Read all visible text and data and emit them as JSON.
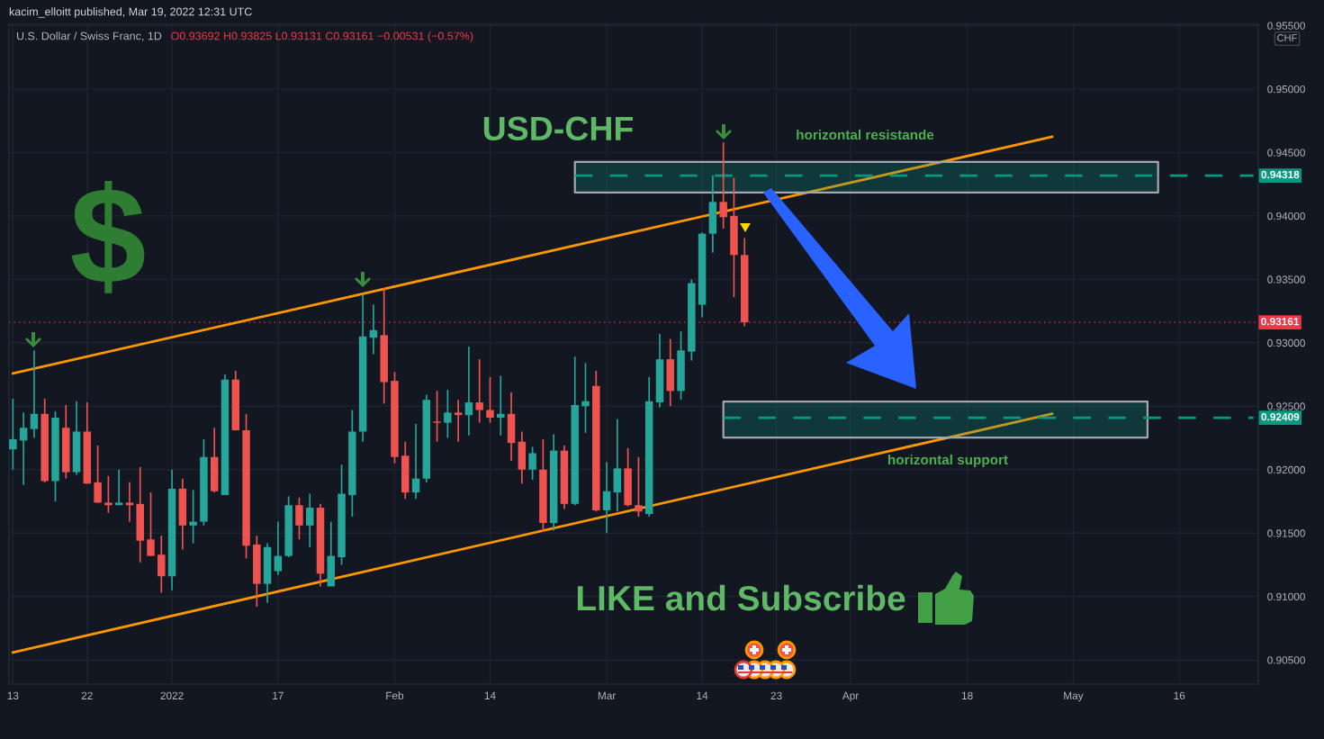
{
  "chart_data": {
    "type": "candlestick",
    "title": "U.S. Dollar / Swiss Franc, 1D",
    "subtitle": "O0.93692 H0.93825 L0.93131 C0.93161 −0.00531 (−0.57%)",
    "ylabel": "CHF",
    "categories": [
      "13",
      null,
      null,
      null,
      null,
      null,
      null,
      "22",
      null,
      null,
      null,
      null,
      null,
      null,
      null,
      "2022",
      null,
      null,
      null,
      null,
      null,
      null,
      null,
      null,
      null,
      "17",
      null,
      null,
      null,
      null,
      null,
      null,
      null,
      null,
      null,
      null,
      "Feb",
      null,
      null,
      null,
      null,
      null,
      null,
      null,
      null,
      "14",
      null,
      null,
      null,
      null,
      null,
      null,
      null,
      null,
      null,
      null,
      "Mar",
      null,
      null,
      null,
      null,
      null,
      null,
      null,
      null,
      "14",
      null,
      null,
      null,
      null,
      null,
      null,
      "23",
      null,
      null,
      null,
      null,
      null,
      null,
      "Apr",
      null,
      null,
      null,
      null,
      null,
      null,
      null,
      null,
      null,
      null,
      "18",
      null,
      null,
      null,
      null,
      null,
      null,
      null,
      null,
      null,
      "May",
      null,
      null,
      null,
      null,
      null,
      null,
      null,
      null,
      null,
      "16",
      null,
      null,
      null,
      null,
      null,
      null,
      null
    ],
    "ohlc": [
      [
        0.9216,
        0.9256,
        0.92,
        0.9224
      ],
      [
        0.9223,
        0.9245,
        0.9188,
        0.9233
      ],
      [
        0.9232,
        0.9294,
        0.9225,
        0.9244
      ],
      [
        0.9244,
        0.9256,
        0.919,
        0.9191
      ],
      [
        0.9191,
        0.9246,
        0.9175,
        0.9241
      ],
      [
        0.9233,
        0.9251,
        0.9193,
        0.9198
      ],
      [
        0.9198,
        0.9254,
        0.9196,
        0.923
      ],
      [
        0.923,
        0.9253,
        0.9189,
        0.9189
      ],
      [
        0.919,
        0.9219,
        0.9174,
        0.9174
      ],
      [
        0.9174,
        0.9195,
        0.9166,
        0.9172
      ],
      [
        0.9172,
        0.92,
        0.9172,
        0.9174
      ],
      [
        0.9174,
        0.919,
        0.9159,
        0.9172
      ],
      [
        0.9173,
        0.9202,
        0.9127,
        0.9144
      ],
      [
        0.9145,
        0.9182,
        0.9132,
        0.9132
      ],
      [
        0.9133,
        0.9148,
        0.9103,
        0.9116
      ],
      [
        0.9116,
        0.92,
        0.9105,
        0.9185
      ],
      [
        0.9185,
        0.9193,
        0.9137,
        0.9156
      ],
      [
        0.9156,
        0.9184,
        0.9142,
        0.9159
      ],
      [
        0.9159,
        0.9224,
        0.9156,
        0.921
      ],
      [
        0.921,
        0.9233,
        0.9182,
        0.9183
      ],
      [
        0.918,
        0.9275,
        0.918,
        0.9271
      ],
      [
        0.9271,
        0.9278,
        0.9231,
        0.9231
      ],
      [
        0.9231,
        0.9244,
        0.913,
        0.914
      ],
      [
        0.9141,
        0.9148,
        0.9092,
        0.911
      ],
      [
        0.911,
        0.9142,
        0.9095,
        0.9139
      ],
      [
        0.912,
        0.9159,
        0.9117,
        0.9132
      ],
      [
        0.9132,
        0.9179,
        0.9131,
        0.9172
      ],
      [
        0.9172,
        0.9178,
        0.9145,
        0.9156
      ],
      [
        0.9156,
        0.9181,
        0.9139,
        0.917
      ],
      [
        0.917,
        0.9173,
        0.9108,
        0.9118
      ],
      [
        0.9108,
        0.9159,
        0.9108,
        0.9132
      ],
      [
        0.9131,
        0.9204,
        0.9125,
        0.9181
      ],
      [
        0.918,
        0.9247,
        0.9163,
        0.923
      ],
      [
        0.923,
        0.9338,
        0.9222,
        0.9305
      ],
      [
        0.9304,
        0.933,
        0.9291,
        0.931
      ],
      [
        0.9306,
        0.9343,
        0.9252,
        0.9269
      ],
      [
        0.927,
        0.9277,
        0.9205,
        0.921
      ],
      [
        0.9211,
        0.9222,
        0.9177,
        0.9182
      ],
      [
        0.9182,
        0.9236,
        0.9177,
        0.9193
      ],
      [
        0.9193,
        0.9259,
        0.919,
        0.9255
      ],
      [
        0.9238,
        0.9262,
        0.9222,
        0.9237
      ],
      [
        0.9237,
        0.9263,
        0.9225,
        0.9245
      ],
      [
        0.9245,
        0.9255,
        0.9222,
        0.9243
      ],
      [
        0.9243,
        0.9297,
        0.9227,
        0.9253
      ],
      [
        0.9253,
        0.9287,
        0.9237,
        0.9247
      ],
      [
        0.9247,
        0.9273,
        0.9237,
        0.9241
      ],
      [
        0.9241,
        0.9274,
        0.9227,
        0.9244
      ],
      [
        0.9244,
        0.9261,
        0.9207,
        0.9221
      ],
      [
        0.9222,
        0.923,
        0.9189,
        0.92
      ],
      [
        0.92,
        0.9218,
        0.9192,
        0.9213
      ],
      [
        0.92,
        0.9224,
        0.9151,
        0.9158
      ],
      [
        0.9158,
        0.9228,
        0.9152,
        0.9215
      ],
      [
        0.9215,
        0.9219,
        0.9169,
        0.9173
      ],
      [
        0.9173,
        0.9289,
        0.9172,
        0.9251
      ],
      [
        0.925,
        0.9284,
        0.9229,
        0.9254
      ],
      [
        0.9266,
        0.9278,
        0.9167,
        0.9168
      ],
      [
        0.9168,
        0.9206,
        0.915,
        0.9183
      ],
      [
        0.9182,
        0.924,
        0.9167,
        0.9201
      ],
      [
        0.9201,
        0.9217,
        0.9171,
        0.9172
      ],
      [
        0.9172,
        0.921,
        0.9163,
        0.9167
      ],
      [
        0.9165,
        0.9273,
        0.9163,
        0.9254
      ],
      [
        0.9253,
        0.9307,
        0.9249,
        0.9287
      ],
      [
        0.9287,
        0.9303,
        0.925,
        0.9262
      ],
      [
        0.9262,
        0.9309,
        0.9255,
        0.9294
      ],
      [
        0.9293,
        0.935,
        0.9286,
        0.9347
      ],
      [
        0.933,
        0.9387,
        0.932,
        0.9386
      ],
      [
        0.9386,
        0.9432,
        0.9371,
        0.9411
      ],
      [
        0.9411,
        0.9458,
        0.939,
        0.9399
      ],
      [
        0.94,
        0.943,
        0.9336,
        0.93692
      ],
      [
        0.93692,
        0.93825,
        0.93131,
        0.93161
      ],
      null,
      null,
      null,
      null,
      null,
      null,
      null,
      null,
      null,
      null,
      null,
      null,
      null,
      null,
      null,
      null,
      null,
      null,
      null,
      null,
      null,
      null,
      null,
      null,
      null,
      null,
      null,
      null,
      null,
      null,
      null,
      null,
      null,
      null,
      null,
      null,
      null,
      null,
      null,
      null,
      null,
      null,
      null,
      null,
      null,
      null,
      null,
      null
    ],
    "colors": [
      "#26a69a",
      "#26a69a",
      "#26a69a",
      "#ef5350",
      "#26a69a",
      "#ef5350",
      "#26a69a",
      "#ef5350",
      "#ef5350",
      "#ef5350",
      "#26a69a",
      "#ef5350",
      "#ef5350",
      "#ef5350",
      "#ef5350",
      "#26a69a",
      "#ef5350",
      "#26a69a",
      "#26a69a",
      "#ef5350",
      "#26a69a",
      "#ef5350",
      "#ef5350",
      "#ef5350",
      "#26a69a",
      "#26a69a",
      "#26a69a",
      "#ef5350",
      "#26a69a",
      "#ef5350",
      "#26a69a",
      "#26a69a",
      "#26a69a",
      "#26a69a",
      "#26a69a",
      "#ef5350",
      "#ef5350",
      "#ef5350",
      "#26a69a",
      "#26a69a",
      "#ef5350",
      "#26a69a",
      "#ef5350",
      "#26a69a",
      "#ef5350",
      "#ef5350",
      "#26a69a",
      "#ef5350",
      "#ef5350",
      "#26a69a",
      "#ef5350",
      "#26a69a",
      "#ef5350",
      "#26a69a",
      "#26a69a",
      "#ef5350",
      "#26a69a",
      "#26a69a",
      "#ef5350",
      "#ef5350",
      "#26a69a",
      "#26a69a",
      "#ef5350",
      "#26a69a",
      "#26a69a",
      "#26a69a",
      "#26a69a",
      "#ef5350",
      "#ef5350",
      "#ef5350",
      null,
      null,
      null,
      null,
      null,
      null,
      null,
      null,
      null,
      null,
      null,
      null,
      null,
      null,
      null,
      null,
      null,
      null,
      null,
      null,
      null,
      null,
      null,
      null,
      null,
      null,
      null,
      null,
      null,
      null,
      null,
      null,
      null,
      null,
      null,
      null,
      null,
      null,
      null,
      null,
      null,
      null,
      null,
      null,
      null,
      null,
      null,
      null
    ],
    "series": [
      {
        "type": "line",
        "color": "#ff9800",
        "values": [
          0.92758,
          null,
          null,
          null,
          null,
          null,
          null,
          null,
          null,
          null,
          null,
          null,
          null,
          null,
          null,
          null,
          null,
          null,
          null,
          null,
          null,
          null,
          null,
          null,
          null,
          null,
          null,
          null,
          null,
          null,
          null,
          null,
          null,
          null,
          null,
          null,
          null,
          null,
          null,
          null,
          null,
          null,
          null,
          null,
          null,
          null,
          null,
          null,
          null,
          null,
          null,
          null,
          null,
          null,
          null,
          null,
          null,
          null,
          null,
          null,
          null,
          null,
          null,
          null,
          null,
          null,
          null,
          null,
          null,
          null,
          null,
          null,
          null,
          null,
          null,
          null,
          null,
          null,
          null,
          null,
          null,
          null,
          null,
          null,
          null,
          null,
          null,
          null,
          null,
          null,
          null,
          null,
          null,
          null,
          null,
          null,
          null,
          null,
          0.94624,
          null,
          null,
          null,
          null,
          null,
          null,
          null,
          null,
          null,
          null,
          null,
          null,
          null,
          null,
          null,
          null,
          null,
          null,
          null
        ]
      },
      {
        "type": "line",
        "color": "#ff9800",
        "values": [
          0.9056,
          null,
          null,
          null,
          null,
          null,
          null,
          null,
          null,
          null,
          null,
          null,
          null,
          null,
          null,
          null,
          null,
          null,
          null,
          null,
          null,
          null,
          null,
          null,
          null,
          null,
          null,
          null,
          null,
          null,
          null,
          null,
          null,
          null,
          null,
          null,
          null,
          null,
          null,
          null,
          null,
          null,
          null,
          null,
          null,
          null,
          null,
          null,
          null,
          null,
          null,
          null,
          null,
          null,
          null,
          null,
          null,
          null,
          null,
          null,
          null,
          null,
          null,
          null,
          null,
          null,
          null,
          null,
          null,
          null,
          null,
          null,
          null,
          null,
          null,
          null,
          null,
          null,
          null,
          null,
          null,
          null,
          null,
          null,
          null,
          null,
          null,
          null,
          null,
          null,
          null,
          null,
          null,
          null,
          null,
          null,
          null,
          null,
          0.92441,
          null,
          null,
          null,
          null,
          null,
          null,
          null,
          null,
          null,
          null,
          null,
          null,
          null,
          null,
          null,
          null,
          null,
          null,
          null
        ]
      },
      {
        "type": "line",
        "color": "#089981",
        "line_style": "dashed",
        "values": [
          null,
          null,
          null,
          null,
          null,
          null,
          null,
          null,
          null,
          null,
          null,
          null,
          null,
          null,
          null,
          null,
          null,
          null,
          null,
          null,
          null,
          null,
          null,
          null,
          null,
          null,
          null,
          null,
          null,
          null,
          null,
          null,
          null,
          null,
          null,
          null,
          null,
          null,
          null,
          null,
          null,
          null,
          null,
          null,
          null,
          null,
          null,
          null,
          null,
          null,
          null,
          null,
          null,
          0.94318,
          null,
          null,
          null,
          null,
          null,
          null,
          null,
          null,
          null,
          null,
          null,
          null,
          null,
          null,
          null,
          null,
          null,
          null,
          null,
          null,
          null,
          null,
          null,
          null,
          null,
          null,
          null,
          null,
          null,
          null,
          null,
          null,
          null,
          null,
          null,
          null,
          null,
          null,
          null,
          null,
          null,
          null,
          null,
          null,
          null,
          null,
          null,
          null,
          null,
          null,
          null,
          null,
          null,
          null,
          0.94318,
          null,
          null,
          null,
          null,
          null,
          null,
          null,
          null,
          0.94318
        ],
        "lower": [
          null,
          null,
          null,
          null,
          null,
          null,
          null,
          null,
          null,
          null,
          null,
          null,
          null,
          null,
          null,
          null,
          null,
          null,
          null,
          null,
          null,
          null,
          null,
          null,
          null,
          null,
          null,
          null,
          null,
          null,
          null,
          null,
          null,
          null,
          null,
          null,
          null,
          null,
          null,
          null,
          null,
          null,
          null,
          null,
          null,
          null,
          null,
          null,
          null,
          null,
          null,
          null,
          null,
          0.94184,
          null,
          null,
          null,
          null,
          null,
          null,
          null,
          null,
          null,
          null,
          null,
          null,
          null,
          null,
          null,
          null,
          null,
          null,
          null,
          null,
          null,
          null,
          null,
          null,
          null,
          null,
          null,
          null,
          null,
          null,
          null,
          null,
          null,
          null,
          null,
          null,
          null,
          null,
          null,
          null,
          null,
          null,
          null,
          null,
          null,
          null,
          null,
          null,
          null,
          null,
          null,
          null,
          null,
          null,
          0.94184,
          null,
          null,
          null,
          null,
          null,
          null,
          null,
          null,
          null
        ],
        "upper": [
          null,
          null,
          null,
          null,
          null,
          null,
          null,
          null,
          null,
          null,
          null,
          null,
          null,
          null,
          null,
          null,
          null,
          null,
          null,
          null,
          null,
          null,
          null,
          null,
          null,
          null,
          null,
          null,
          null,
          null,
          null,
          null,
          null,
          null,
          null,
          null,
          null,
          null,
          null,
          null,
          null,
          null,
          null,
          null,
          null,
          null,
          null,
          null,
          null,
          null,
          null,
          null,
          null,
          0.94425,
          null,
          null,
          null,
          null,
          null,
          null,
          null,
          null,
          null,
          null,
          null,
          null,
          null,
          null,
          null,
          null,
          null,
          null,
          null,
          null,
          null,
          null,
          null,
          null,
          null,
          null,
          null,
          null,
          null,
          null,
          null,
          null,
          null,
          null,
          null,
          null,
          null,
          null,
          null,
          null,
          null,
          null,
          null,
          null,
          null,
          null,
          null,
          null,
          null,
          null,
          null,
          null,
          null,
          null,
          0.94425,
          null,
          null,
          null,
          null,
          null,
          null,
          null,
          null,
          null
        ],
        "value_labels": [
          null,
          null,
          null,
          null,
          null,
          null,
          null,
          null,
          null,
          null,
          null,
          null,
          null,
          null,
          null,
          null,
          null,
          null,
          null,
          null,
          null,
          null,
          null,
          null,
          null,
          null,
          null,
          null,
          null,
          null,
          null,
          null,
          null,
          null,
          null,
          null,
          null,
          null,
          null,
          null,
          null,
          null,
          null,
          null,
          null,
          null,
          null,
          null,
          null,
          null,
          null,
          null,
          null,
          null,
          null,
          null,
          null,
          null,
          null,
          null,
          null,
          null,
          null,
          null,
          null,
          null,
          null,
          null,
          null,
          null,
          null,
          null,
          null,
          null,
          null,
          null,
          null,
          null,
          null,
          null,
          null,
          null,
          null,
          null,
          null,
          null,
          null,
          null,
          null,
          null,
          null,
          null,
          null,
          null,
          null,
          null,
          null,
          null,
          null,
          null,
          null,
          null,
          null,
          null,
          null,
          null,
          null,
          null,
          null,
          null,
          null,
          null,
          null,
          null,
          null,
          null,
          null,
          "0.94318"
        ]
      },
      {
        "type": "line",
        "color": "#089981",
        "line_style": "dashed",
        "values": [
          null,
          null,
          null,
          null,
          null,
          null,
          null,
          null,
          null,
          null,
          null,
          null,
          null,
          null,
          null,
          null,
          null,
          null,
          null,
          null,
          null,
          null,
          null,
          null,
          null,
          null,
          null,
          null,
          null,
          null,
          null,
          null,
          null,
          null,
          null,
          null,
          null,
          null,
          null,
          null,
          null,
          null,
          null,
          null,
          null,
          null,
          null,
          null,
          null,
          null,
          null,
          null,
          null,
          null,
          null,
          null,
          null,
          null,
          null,
          null,
          null,
          null,
          null,
          null,
          null,
          null,
          null,
          0.92409,
          null,
          null,
          null,
          null,
          null,
          null,
          null,
          null,
          null,
          null,
          null,
          null,
          null,
          null,
          null,
          null,
          null,
          null,
          null,
          null,
          null,
          null,
          null,
          null,
          null,
          null,
          null,
          null,
          null,
          null,
          null,
          null,
          null,
          null,
          null,
          null,
          null,
          null,
          null,
          0.92409,
          null,
          null,
          null,
          null,
          null,
          null,
          null,
          null,
          null,
          0.92409
        ],
        "lower": [
          null,
          null,
          null,
          null,
          null,
          null,
          null,
          null,
          null,
          null,
          null,
          null,
          null,
          null,
          null,
          null,
          null,
          null,
          null,
          null,
          null,
          null,
          null,
          null,
          null,
          null,
          null,
          null,
          null,
          null,
          null,
          null,
          null,
          null,
          null,
          null,
          null,
          null,
          null,
          null,
          null,
          null,
          null,
          null,
          null,
          null,
          null,
          null,
          null,
          null,
          null,
          null,
          null,
          null,
          null,
          null,
          null,
          null,
          null,
          null,
          null,
          null,
          null,
          null,
          null,
          null,
          null,
          0.92253,
          null,
          null,
          null,
          null,
          null,
          null,
          null,
          null,
          null,
          null,
          null,
          null,
          null,
          null,
          null,
          null,
          null,
          null,
          null,
          null,
          null,
          null,
          null,
          null,
          null,
          null,
          null,
          null,
          null,
          null,
          null,
          null,
          null,
          null,
          null,
          null,
          null,
          null,
          null,
          0.92253,
          null,
          null,
          null,
          null,
          null,
          null,
          null,
          null,
          null,
          null
        ],
        "upper": [
          null,
          null,
          null,
          null,
          null,
          null,
          null,
          null,
          null,
          null,
          null,
          null,
          null,
          null,
          null,
          null,
          null,
          null,
          null,
          null,
          null,
          null,
          null,
          null,
          null,
          null,
          null,
          null,
          null,
          null,
          null,
          null,
          null,
          null,
          null,
          null,
          null,
          null,
          null,
          null,
          null,
          null,
          null,
          null,
          null,
          null,
          null,
          null,
          null,
          null,
          null,
          null,
          null,
          null,
          null,
          null,
          null,
          null,
          null,
          null,
          null,
          null,
          null,
          null,
          null,
          null,
          null,
          0.92537,
          null,
          null,
          null,
          null,
          null,
          null,
          null,
          null,
          null,
          null,
          null,
          null,
          null,
          null,
          null,
          null,
          null,
          null,
          null,
          null,
          null,
          null,
          null,
          null,
          null,
          null,
          null,
          null,
          null,
          null,
          null,
          null,
          null,
          null,
          null,
          null,
          null,
          null,
          null,
          0.92537,
          null,
          null,
          null,
          null,
          null,
          null,
          null,
          null,
          null,
          null
        ],
        "value_labels": [
          null,
          null,
          null,
          null,
          null,
          null,
          null,
          null,
          null,
          null,
          null,
          null,
          null,
          null,
          null,
          null,
          null,
          null,
          null,
          null,
          null,
          null,
          null,
          null,
          null,
          null,
          null,
          null,
          null,
          null,
          null,
          null,
          null,
          null,
          null,
          null,
          null,
          null,
          null,
          null,
          null,
          null,
          null,
          null,
          null,
          null,
          null,
          null,
          null,
          null,
          null,
          null,
          null,
          null,
          null,
          null,
          null,
          null,
          null,
          null,
          null,
          null,
          null,
          null,
          null,
          null,
          null,
          null,
          null,
          null,
          null,
          null,
          null,
          null,
          null,
          null,
          null,
          null,
          null,
          null,
          null,
          null,
          null,
          null,
          null,
          null,
          null,
          null,
          null,
          null,
          null,
          null,
          null,
          null,
          null,
          null,
          null,
          null,
          null,
          null,
          null,
          null,
          null,
          null,
          null,
          null,
          null,
          null,
          null,
          null,
          null,
          null,
          null,
          null,
          null,
          null,
          null,
          "0.92409"
        ]
      }
    ],
    "ref_lines": [
      {
        "axis": "y",
        "value": 0.93161,
        "label": "0.93161",
        "color": "#f23645",
        "line_style": "dotted"
      }
    ],
    "annotations": [
      "kacim_elloitt published, Mar 19, 2022 12:31 UTC",
      "USD-CHF",
      "$",
      "horizontal resistande",
      "horizontal support",
      "LIKE and Subscribe"
    ],
    "ylim": [
      0.9031,
      0.9551
    ],
    "yticks": [
      {
        "value": 0.905,
        "label": "0.90500"
      },
      {
        "value": 0.91,
        "label": "0.91000"
      },
      {
        "value": 0.915,
        "label": "0.91500"
      },
      {
        "value": 0.92,
        "label": "0.92000"
      },
      {
        "value": 0.925,
        "label": "0.92500"
      },
      {
        "value": 0.93,
        "label": "0.93000"
      },
      {
        "value": 0.935,
        "label": "0.93500"
      },
      {
        "value": 0.94,
        "label": "0.94000"
      },
      {
        "value": 0.945,
        "label": "0.94500"
      },
      {
        "value": 0.95,
        "label": "0.95000"
      },
      {
        "value": 0.955,
        "label": "0.95500"
      }
    ],
    "grid": true
  }
}
